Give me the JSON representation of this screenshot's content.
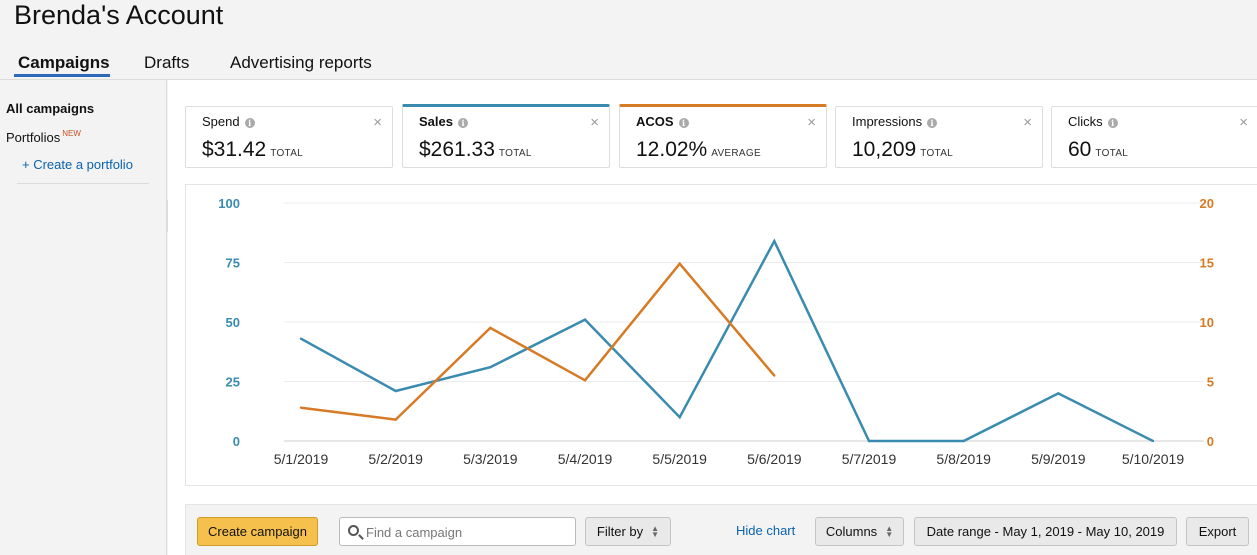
{
  "header": {
    "title": "Brenda's Account"
  },
  "tabs": [
    {
      "label": "Campaigns",
      "active": true
    },
    {
      "label": "Drafts",
      "active": false
    },
    {
      "label": "Advertising reports",
      "active": false
    }
  ],
  "sidebar": {
    "all_campaigns": "All campaigns",
    "portfolios": "Portfolios",
    "portfolios_badge": "NEW",
    "create_portfolio": "+ Create a portfolio",
    "collapse_glyph": "«"
  },
  "metrics": [
    {
      "label": "Spend",
      "value": "$31.42",
      "unit": "TOTAL",
      "selected": false,
      "accent": ""
    },
    {
      "label": "Sales",
      "value": "$261.33",
      "unit": "TOTAL",
      "selected": true,
      "accent": "#3a8bb0"
    },
    {
      "label": "ACOS",
      "value": "12.02%",
      "unit": "AVERAGE",
      "selected": true,
      "accent": "#d77a25"
    },
    {
      "label": "Impressions",
      "value": "10,209",
      "unit": "TOTAL",
      "selected": false,
      "accent": ""
    },
    {
      "label": "Clicks",
      "value": "60",
      "unit": "TOTAL",
      "selected": false,
      "accent": ""
    }
  ],
  "chart_data": {
    "type": "line",
    "categories": [
      "5/1/2019",
      "5/2/2019",
      "5/3/2019",
      "5/4/2019",
      "5/5/2019",
      "5/6/2019",
      "5/7/2019",
      "5/8/2019",
      "5/9/2019",
      "5/10/2019"
    ],
    "left_axis": {
      "ticks": [
        0,
        25,
        50,
        75,
        100
      ],
      "range": [
        0,
        100
      ],
      "color": "#3a8bb0"
    },
    "right_axis": {
      "ticks": [
        0,
        5,
        10,
        15,
        20
      ],
      "range": [
        0,
        20
      ],
      "color": "#d77a25"
    },
    "series": [
      {
        "axis": "left",
        "color": "#3a8bb0",
        "values": [
          43,
          21,
          31,
          51,
          10,
          84,
          0,
          0,
          20,
          0
        ]
      },
      {
        "axis": "right",
        "color": "#d77a25",
        "values": [
          2.8,
          1.8,
          9.5,
          5.1,
          14.9,
          5.5,
          null,
          null,
          null,
          null
        ]
      }
    ],
    "grid": true
  },
  "toolbar": {
    "create_campaign": "Create campaign",
    "search_placeholder": "Find a campaign",
    "filter_by": "Filter by",
    "hide_chart": "Hide chart",
    "columns": "Columns",
    "date_range": "Date range - May 1, 2019 - May 10, 2019",
    "export": "Export"
  },
  "icons": {
    "info": "info-icon",
    "close": "close-icon",
    "search": "search-icon",
    "collapse": "chevron-double-left-icon",
    "sort": "sort-arrows-icon"
  }
}
